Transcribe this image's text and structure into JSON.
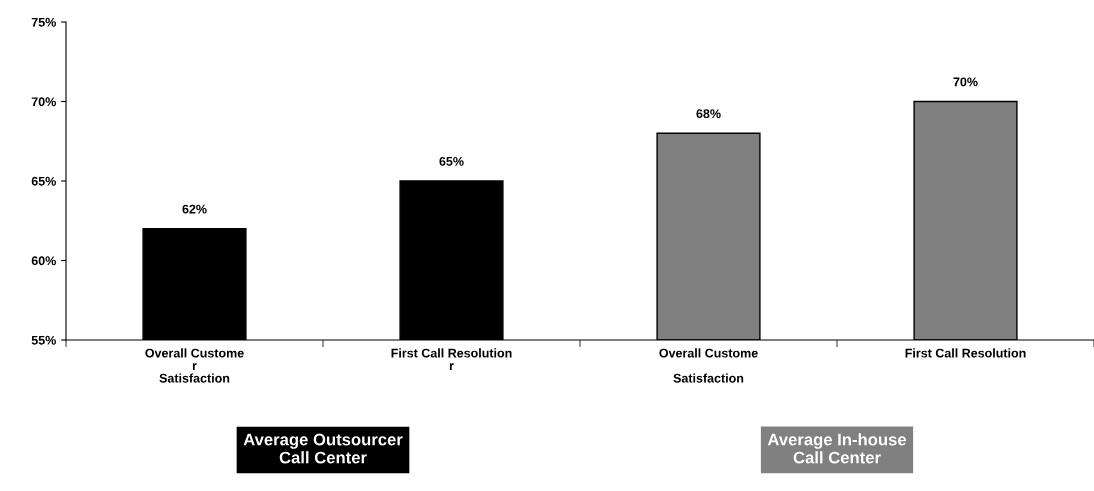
{
  "chart_data": {
    "type": "bar",
    "categories": [
      "Overall Custome\nr\nSatisfaction",
      "First Call Resolution\nr",
      "Overall Custome\n\nSatisfaction",
      "First Call Resolution"
    ],
    "values": [
      62,
      65,
      68,
      70
    ],
    "colors": [
      "#000000",
      "#000000",
      "#808080",
      "#808080"
    ],
    "value_labels": [
      "62%",
      "65%",
      "68%",
      "70%"
    ],
    "ylim": [
      55,
      75
    ],
    "yticks": [
      {
        "value": 55,
        "label": "55%"
      },
      {
        "value": 60,
        "label": "60%"
      },
      {
        "value": 65,
        "label": "65%"
      },
      {
        "value": 70,
        "label": "70%"
      },
      {
        "value": 75,
        "label": "75%"
      }
    ],
    "grid": false,
    "legend": false,
    "annotations": [
      "Average Outsourcer\nCall Center",
      "Average In-house\nCall Center"
    ]
  }
}
